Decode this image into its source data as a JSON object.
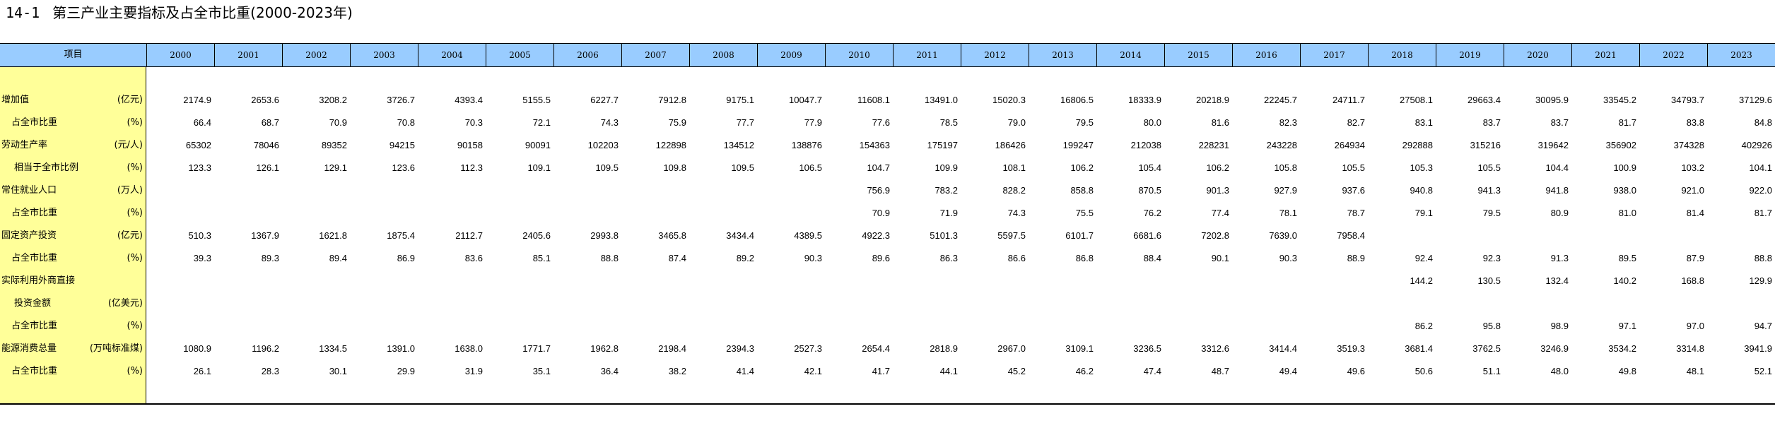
{
  "title": {
    "number": "14-1",
    "text": "第三产业主要指标及占全市比重(2000-2023年)"
  },
  "header": {
    "item_label": "项目",
    "years": [
      "2000",
      "2001",
      "2002",
      "2003",
      "2004",
      "2005",
      "2006",
      "2007",
      "2008",
      "2009",
      "2010",
      "2011",
      "2012",
      "2013",
      "2014",
      "2015",
      "2016",
      "2017",
      "2018",
      "2019",
      "2020",
      "2021",
      "2022",
      "2023"
    ]
  },
  "rows": [
    {
      "label": "增加值",
      "unit": "(亿元)",
      "indent": 0,
      "values": [
        "2174.9",
        "2653.6",
        "3208.2",
        "3726.7",
        "4393.4",
        "5155.5",
        "6227.7",
        "7912.8",
        "9175.1",
        "10047.7",
        "11608.1",
        "13491.0",
        "15020.3",
        "16806.5",
        "18333.9",
        "20218.9",
        "22245.7",
        "24711.7",
        "27508.1",
        "29663.4",
        "30095.9",
        "33545.2",
        "34793.7",
        "37129.6"
      ]
    },
    {
      "label": "占全市比重",
      "unit": "(%)",
      "indent": 1,
      "values": [
        "66.4",
        "68.7",
        "70.9",
        "70.8",
        "70.3",
        "72.1",
        "74.3",
        "75.9",
        "77.7",
        "77.9",
        "77.6",
        "78.5",
        "79.0",
        "79.5",
        "80.0",
        "81.6",
        "82.3",
        "82.7",
        "83.1",
        "83.7",
        "83.7",
        "81.7",
        "83.8",
        "84.8"
      ]
    },
    {
      "label": "劳动生产率",
      "unit": "(元/人)",
      "indent": 0,
      "values": [
        "65302",
        "78046",
        "89352",
        "94215",
        "90158",
        "90091",
        "102203",
        "122898",
        "134512",
        "138876",
        "154363",
        "175197",
        "186426",
        "199247",
        "212038",
        "228231",
        "243228",
        "264934",
        "292888",
        "315216",
        "319642",
        "356902",
        "374328",
        "402926"
      ]
    },
    {
      "label": "相当于全市比例",
      "unit": "(%)",
      "indent": 2,
      "values": [
        "123.3",
        "126.1",
        "129.1",
        "123.6",
        "112.3",
        "109.1",
        "109.5",
        "109.8",
        "109.5",
        "106.5",
        "104.7",
        "109.9",
        "108.1",
        "106.2",
        "105.4",
        "106.2",
        "105.8",
        "105.5",
        "105.3",
        "105.5",
        "104.4",
        "100.9",
        "103.2",
        "104.1"
      ]
    },
    {
      "label": "常住就业人口",
      "unit": "(万人)",
      "indent": 0,
      "values": [
        "",
        "",
        "",
        "",
        "",
        "",
        "",
        "",
        "",
        "",
        "756.9",
        "783.2",
        "828.2",
        "858.8",
        "870.5",
        "901.3",
        "927.9",
        "937.6",
        "940.8",
        "941.3",
        "941.8",
        "938.0",
        "921.0",
        "922.0"
      ]
    },
    {
      "label": "占全市比重",
      "unit": "(%)",
      "indent": 1,
      "values": [
        "",
        "",
        "",
        "",
        "",
        "",
        "",
        "",
        "",
        "",
        "70.9",
        "71.9",
        "74.3",
        "75.5",
        "76.2",
        "77.4",
        "78.1",
        "78.7",
        "79.1",
        "79.5",
        "80.9",
        "81.0",
        "81.4",
        "81.7"
      ]
    },
    {
      "label": "固定资产投资",
      "unit": "(亿元)",
      "indent": 0,
      "values": [
        "510.3",
        "1367.9",
        "1621.8",
        "1875.4",
        "2112.7",
        "2405.6",
        "2993.8",
        "3465.8",
        "3434.4",
        "4389.5",
        "4922.3",
        "5101.3",
        "5597.5",
        "6101.7",
        "6681.6",
        "7202.8",
        "7639.0",
        "7958.4",
        "",
        "",
        "",
        "",
        "",
        ""
      ]
    },
    {
      "label": "占全市比重",
      "unit": "(%)",
      "indent": 1,
      "values": [
        "39.3",
        "89.3",
        "89.4",
        "86.9",
        "83.6",
        "85.1",
        "88.8",
        "87.4",
        "89.2",
        "90.3",
        "89.6",
        "86.3",
        "86.6",
        "86.8",
        "88.4",
        "90.1",
        "90.3",
        "88.9",
        "92.4",
        "92.3",
        "91.3",
        "89.5",
        "87.9",
        "88.8"
      ]
    },
    {
      "label": "实际利用外商直接",
      "unit": "",
      "indent": 0,
      "values": [
        "",
        "",
        "",
        "",
        "",
        "",
        "",
        "",
        "",
        "",
        "",
        "",
        "",
        "",
        "",
        "",
        "",
        "",
        "144.2",
        "130.5",
        "132.4",
        "140.2",
        "168.8",
        "129.9"
      ]
    },
    {
      "label": "投资金额",
      "unit": "(亿美元)",
      "indent": 2,
      "values": [
        "",
        "",
        "",
        "",
        "",
        "",
        "",
        "",
        "",
        "",
        "",
        "",
        "",
        "",
        "",
        "",
        "",
        "",
        "",
        "",
        "",
        "",
        "",
        ""
      ]
    },
    {
      "label": "占全市比重",
      "unit": "(%)",
      "indent": 1,
      "values": [
        "",
        "",
        "",
        "",
        "",
        "",
        "",
        "",
        "",
        "",
        "",
        "",
        "",
        "",
        "",
        "",
        "",
        "",
        "86.2",
        "95.8",
        "98.9",
        "97.1",
        "97.0",
        "94.7"
      ]
    },
    {
      "label": "能源消费总量",
      "unit": "(万吨标准煤)",
      "indent": 0,
      "values": [
        "1080.9",
        "1196.2",
        "1334.5",
        "1391.0",
        "1638.0",
        "1771.7",
        "1962.8",
        "2198.4",
        "2394.3",
        "2527.3",
        "2654.4",
        "2818.9",
        "2967.0",
        "3109.1",
        "3236.5",
        "3312.6",
        "3414.4",
        "3519.3",
        "3681.4",
        "3762.5",
        "3246.9",
        "3534.2",
        "3314.8",
        "3941.9"
      ]
    },
    {
      "label": "占全市比重",
      "unit": "(%)",
      "indent": 1,
      "values": [
        "26.1",
        "28.3",
        "30.1",
        "29.9",
        "31.9",
        "35.1",
        "36.4",
        "38.2",
        "41.4",
        "42.1",
        "41.7",
        "44.1",
        "45.2",
        "46.2",
        "47.4",
        "48.7",
        "49.4",
        "49.6",
        "50.6",
        "51.1",
        "48.0",
        "49.8",
        "48.1",
        "52.1"
      ]
    }
  ],
  "colors": {
    "header_bg": "#99ccff",
    "label_col_bg": "#ffff99"
  }
}
